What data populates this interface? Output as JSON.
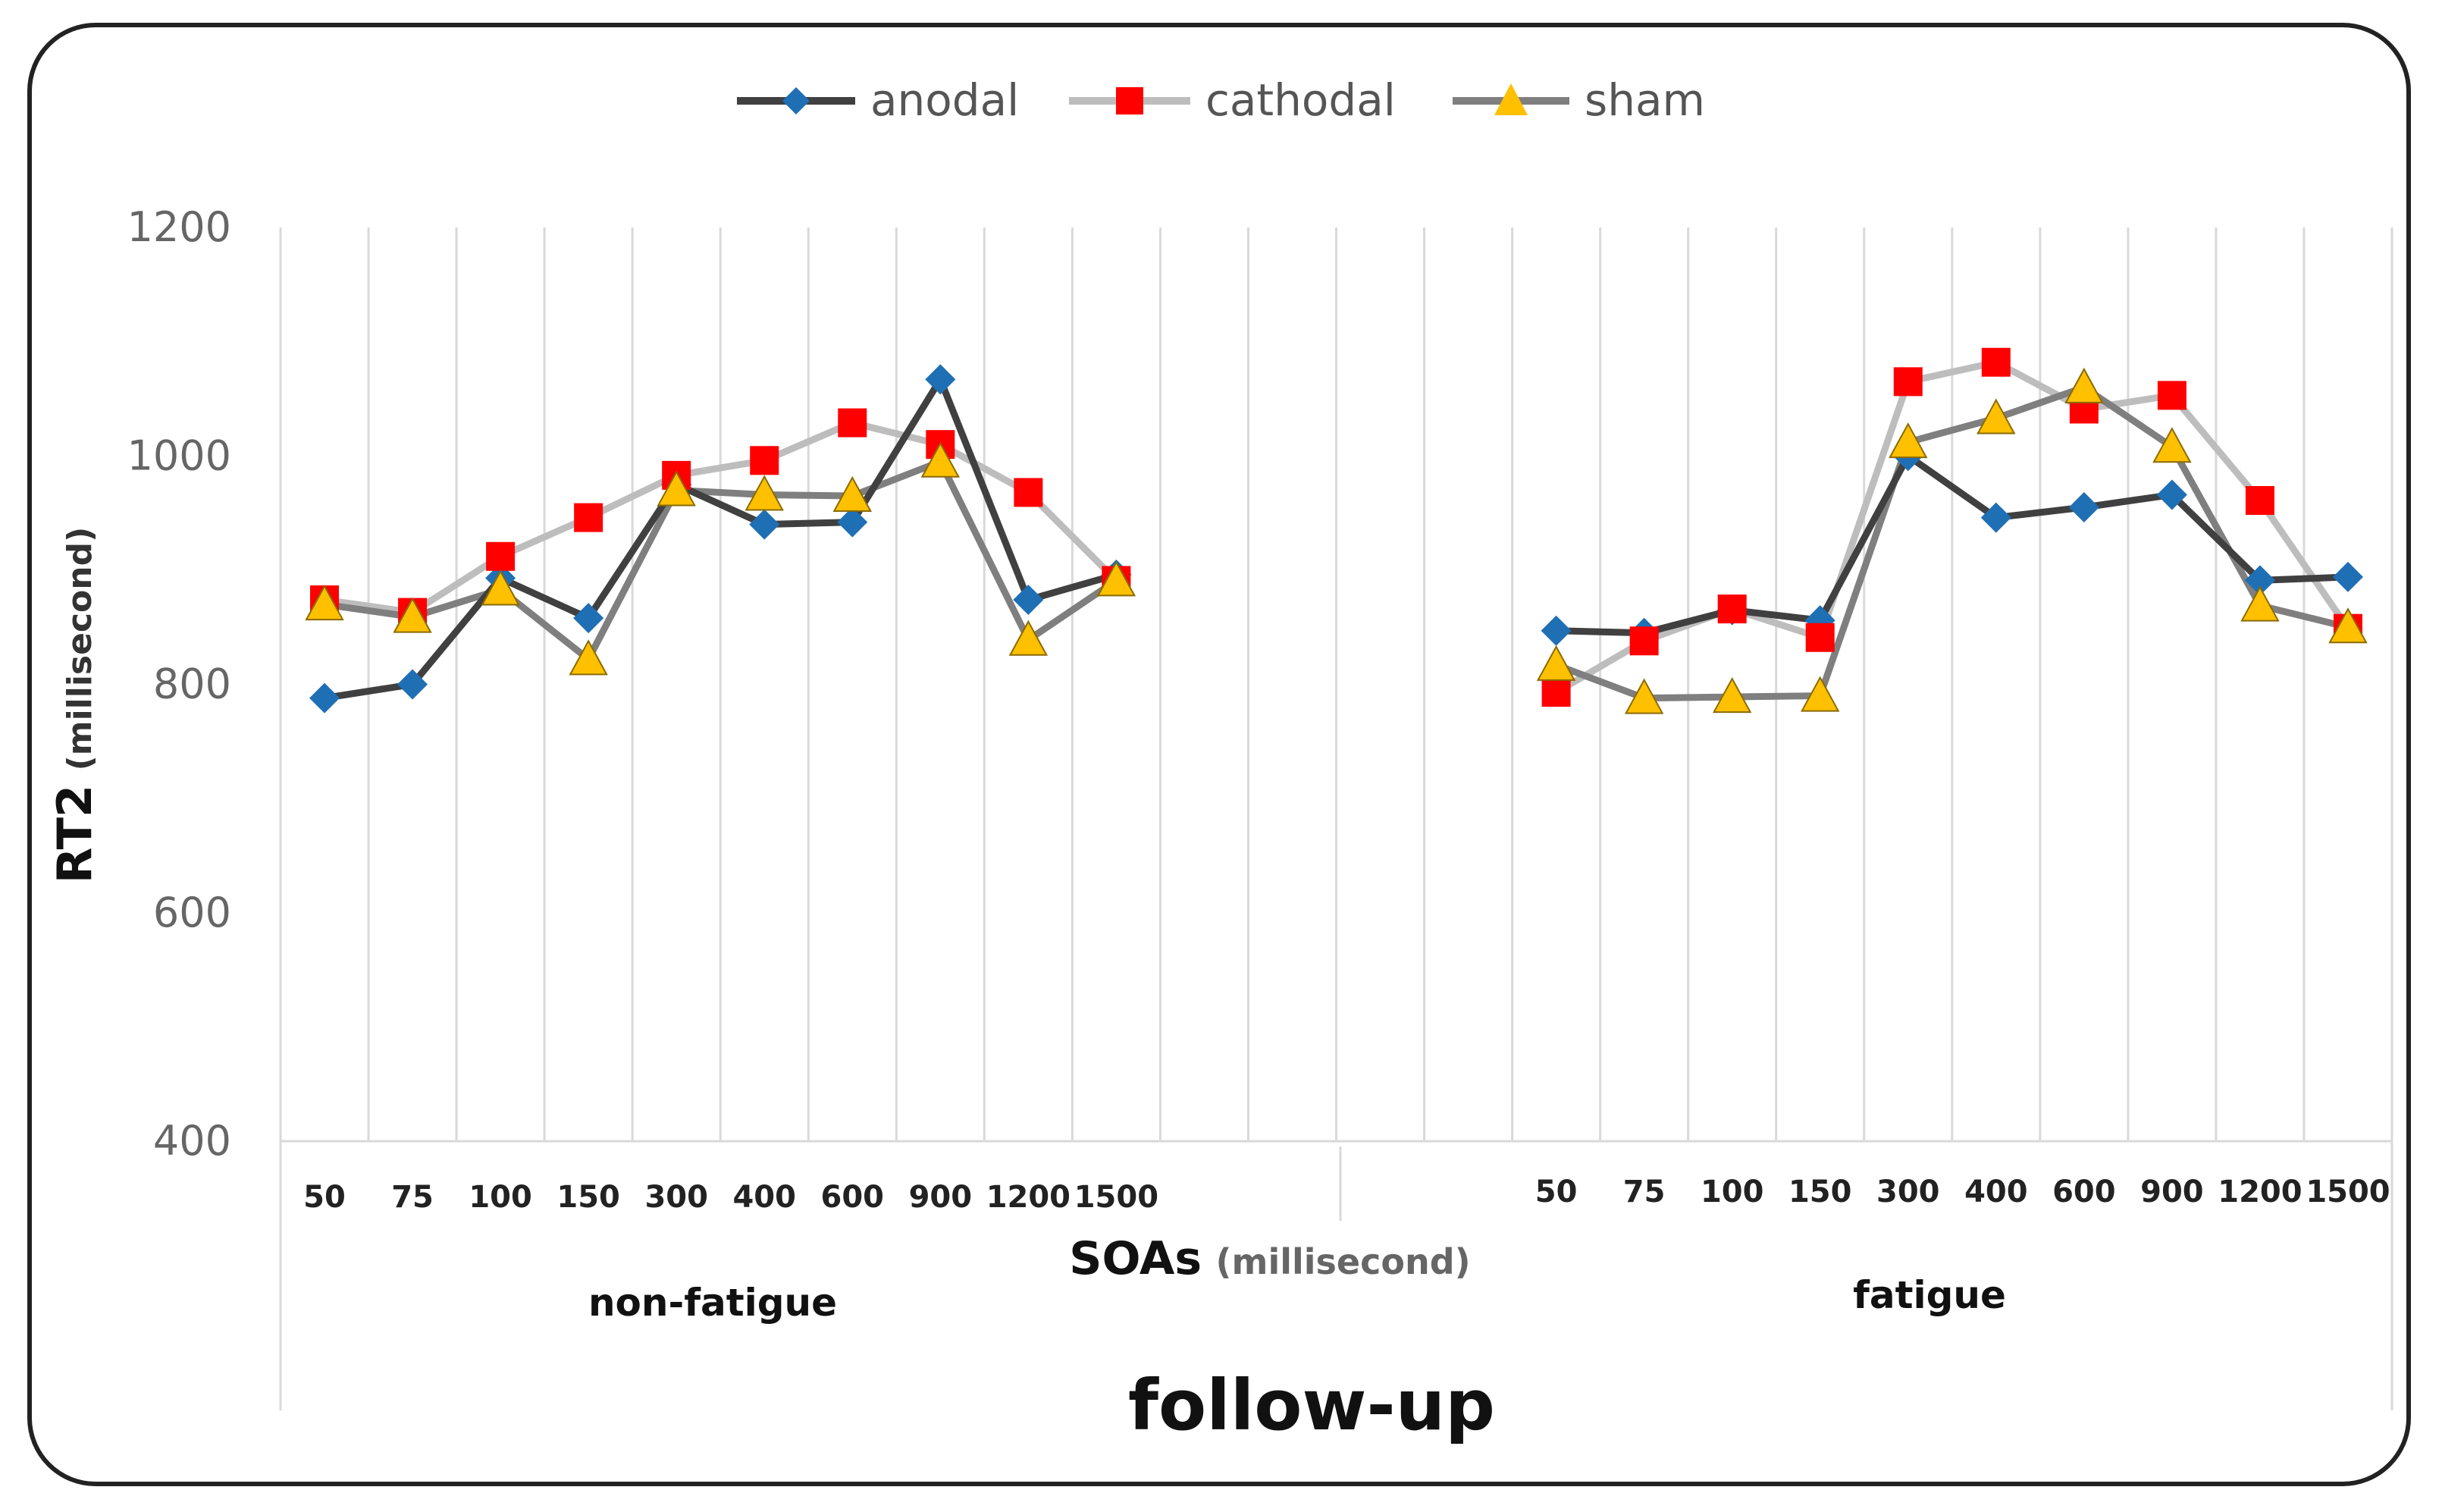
{
  "chart_data": {
    "type": "line",
    "title": "",
    "ylabel": "RT2",
    "ylabel_unit": "(millisecond)",
    "xlabel": "SOAs",
    "xlabel_unit": "(millisecond)",
    "footer": "follow-up",
    "ylim": [
      400,
      1200
    ],
    "yticks": [
      400,
      600,
      800,
      1000,
      1200
    ],
    "grid": "vertical",
    "legend_position": "top-center",
    "groups": [
      {
        "name": "non-fatigue",
        "categories": [
          "50",
          "75",
          "100",
          "150",
          "300",
          "400",
          "600",
          "900",
          "1200",
          "1500"
        ],
        "series": [
          {
            "name": "anodal",
            "values": [
              788,
              800,
              893,
              858,
              975,
              940,
              942,
              1067,
              874,
              896
            ]
          },
          {
            "name": "cathodal",
            "values": [
              874,
              863,
              912,
              946,
              983,
              996,
              1029,
              1010,
              968,
              891
            ]
          },
          {
            "name": "sham",
            "values": [
              870,
              859,
              883,
              822,
              970,
              966,
              965,
              995,
              839,
              891
            ]
          }
        ]
      },
      {
        "name": "fatigue",
        "categories": [
          "50",
          "75",
          "100",
          "150",
          "300",
          "400",
          "600",
          "900",
          "1200",
          "1500"
        ],
        "series": [
          {
            "name": "anodal",
            "values": [
              847,
              845,
              865,
              856,
              1000,
              946,
              955,
              966,
              891,
              894
            ]
          },
          {
            "name": "cathodal",
            "values": [
              793,
              838,
              866,
              841,
              1065,
              1082,
              1041,
              1053,
              961,
              849
            ]
          },
          {
            "name": "sham",
            "values": [
              817,
              788,
              789,
              790,
              1012,
              1033,
              1060,
              1008,
              869,
              850
            ]
          }
        ]
      }
    ]
  },
  "legend": [
    {
      "name": "anodal",
      "marker": "diamond",
      "line_color": "#404040",
      "marker_color": "#1f6fb5"
    },
    {
      "name": "cathodal",
      "marker": "square",
      "line_color": "#bdbdbd",
      "marker_color": "#ff0000"
    },
    {
      "name": "sham",
      "marker": "triangle",
      "line_color": "#7f7f7f",
      "marker_color": "#ffc000"
    }
  ]
}
